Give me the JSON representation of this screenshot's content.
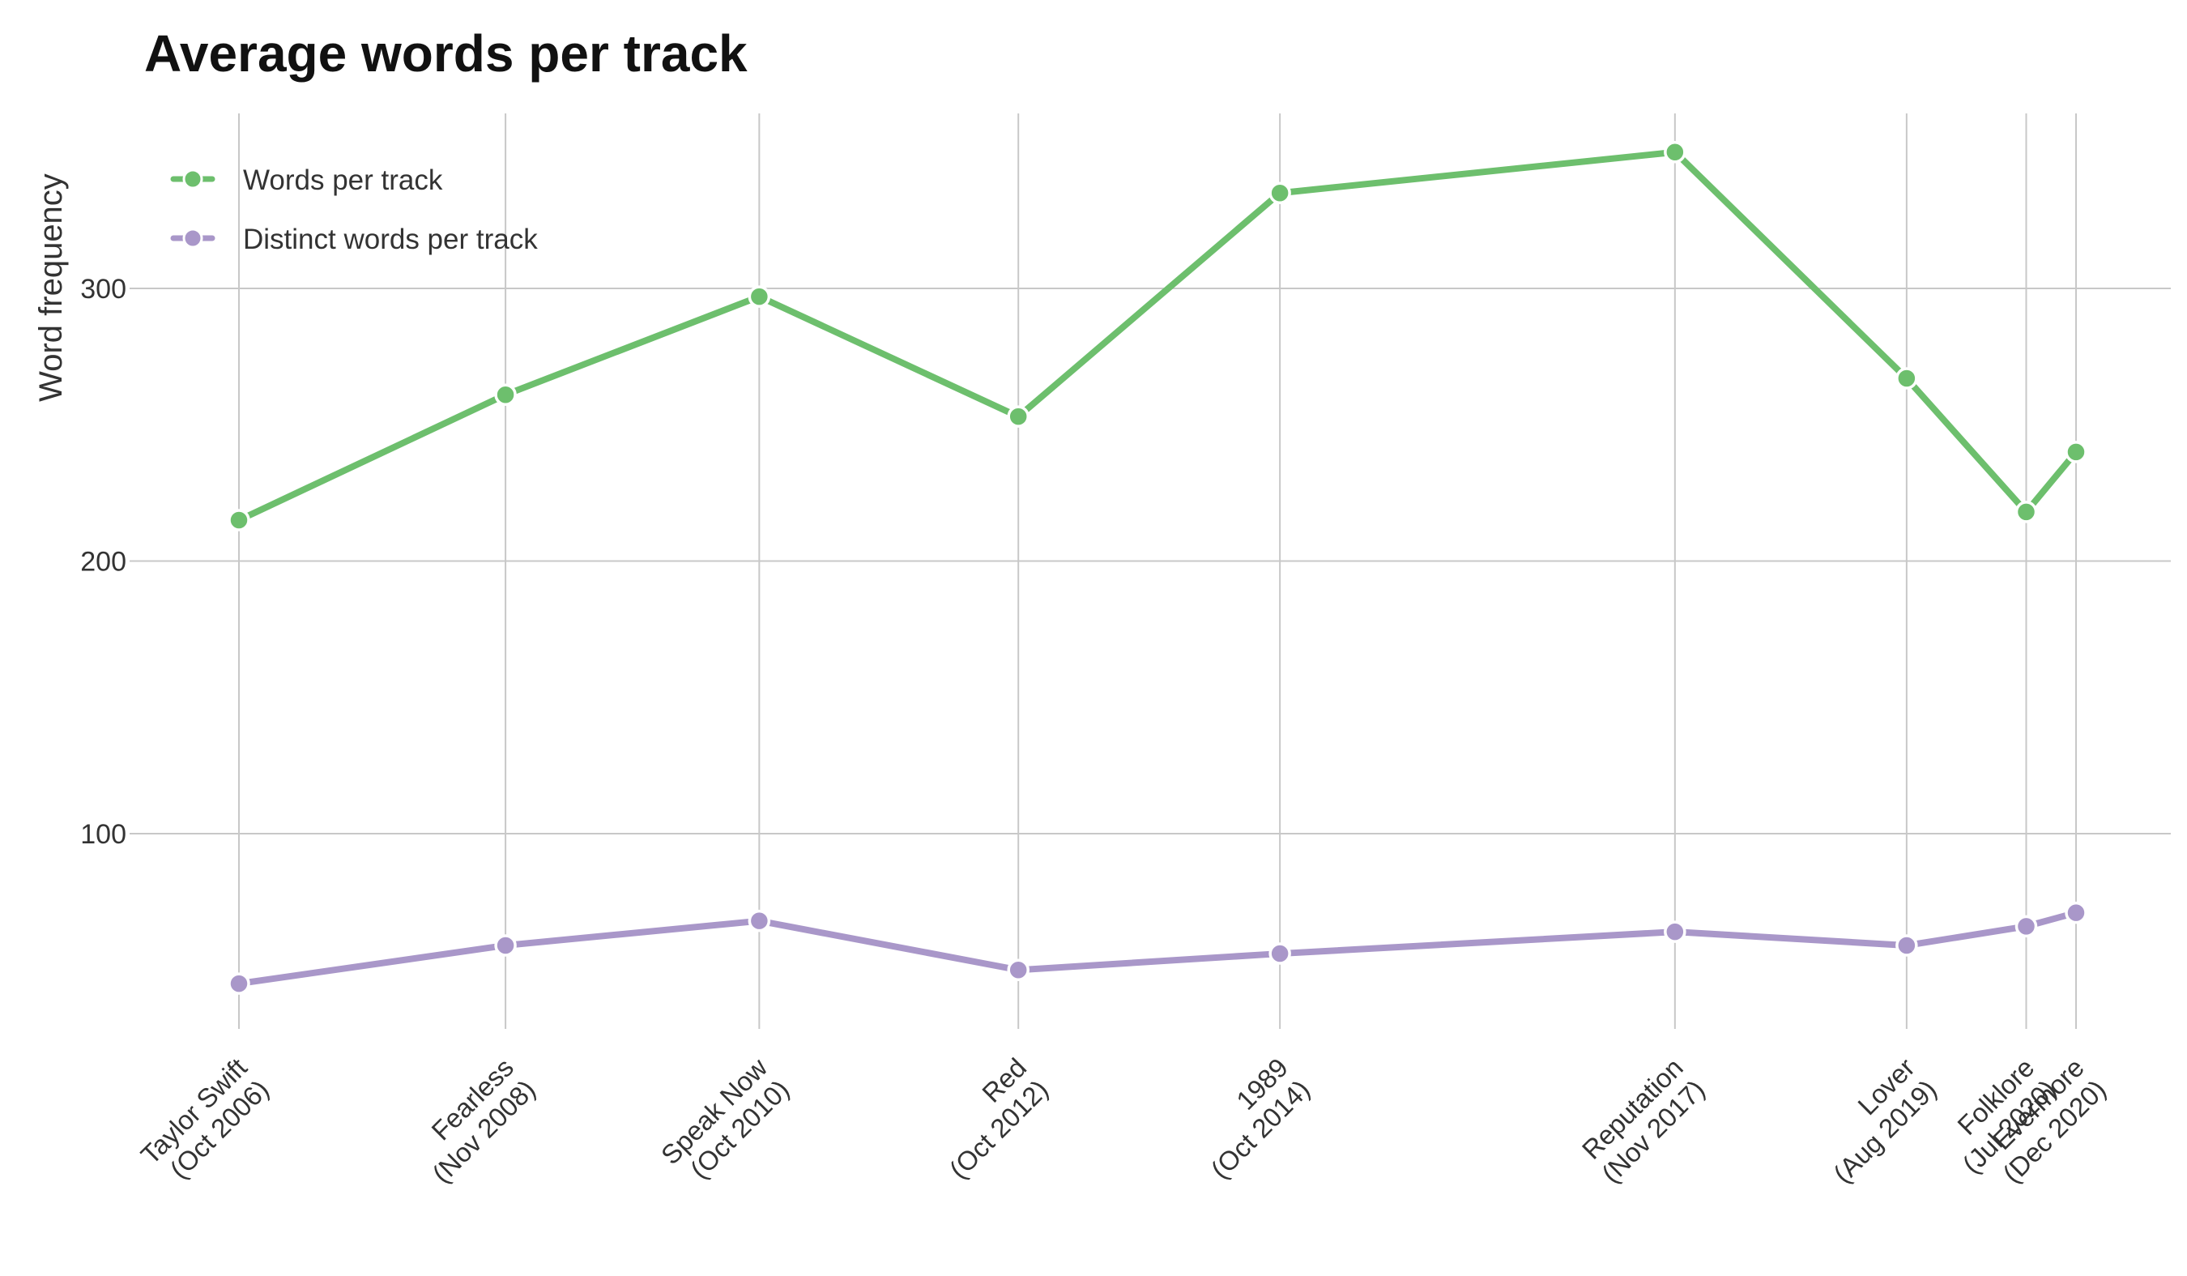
{
  "chart_data": {
    "type": "line",
    "title": "Average words per track",
    "xlabel": "",
    "ylabel": "Word frequency",
    "x_type": "date",
    "x": [
      "2006-10-24",
      "2008-11-11",
      "2010-10-25",
      "2012-10-22",
      "2014-10-27",
      "2017-11-10",
      "2019-08-23",
      "2020-07-24",
      "2020-12-11"
    ],
    "categories": [
      "Taylor Swift\n(Oct 2006)",
      "Fearless\n(Nov 2008)",
      "Speak Now\n(Oct 2010)",
      "Red\n(Oct 2012)",
      "1989\n(Oct 2014)",
      "Reputation\n(Nov 2017)",
      "Lover\n(Aug 2019)",
      "Folklore\n(Jul 2020)",
      "Evermore\n(Dec 2020)"
    ],
    "yticks": [
      100,
      200,
      300
    ],
    "ylim": [
      31,
      366
    ],
    "grid": true,
    "legend_position": "top-left",
    "series": [
      {
        "name": "Words per track",
        "color": "#6dbf6d",
        "values": [
          215,
          261,
          297,
          253,
          335,
          350,
          267,
          218,
          240
        ]
      },
      {
        "name": "Distinct words per track",
        "color": "#a997c9",
        "values": [
          45,
          59,
          68,
          50,
          56,
          64,
          59,
          66,
          71
        ]
      }
    ]
  }
}
